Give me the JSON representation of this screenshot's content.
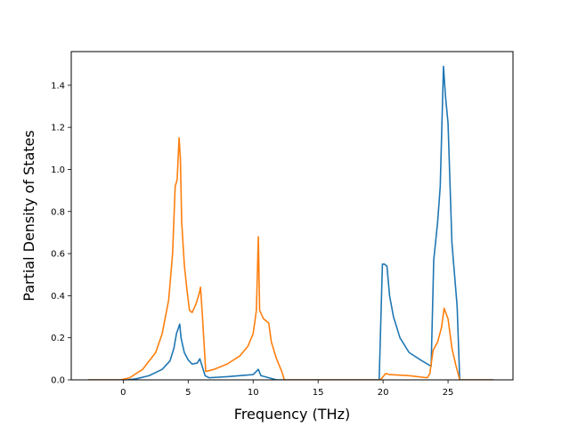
{
  "chart_data": {
    "type": "line",
    "title": "",
    "xlabel": "Frequency (THz)",
    "ylabel": "Partial Density of States",
    "xlim": [
      -4.0,
      30.0
    ],
    "ylim": [
      0.0,
      1.56
    ],
    "xticks": [
      0,
      5,
      10,
      15,
      20,
      25
    ],
    "xtick_labels": [
      "0",
      "5",
      "10",
      "15",
      "20",
      "25"
    ],
    "yticks": [
      0.0,
      0.2,
      0.4,
      0.6,
      0.8,
      1.0,
      1.2,
      1.4
    ],
    "ytick_labels": [
      "0.0",
      "0.2",
      "0.4",
      "0.6",
      "0.8",
      "1.0",
      "1.2",
      "1.4"
    ],
    "grid": false,
    "legend": null,
    "series": [
      {
        "color": "#1f77b4",
        "points": [
          [
            -2.7,
            0.0
          ],
          [
            0.3,
            0.0
          ],
          [
            1.0,
            0.005
          ],
          [
            2.0,
            0.02
          ],
          [
            3.0,
            0.05
          ],
          [
            3.6,
            0.09
          ],
          [
            3.9,
            0.15
          ],
          [
            4.1,
            0.22
          ],
          [
            4.35,
            0.265
          ],
          [
            4.45,
            0.2
          ],
          [
            4.7,
            0.13
          ],
          [
            5.0,
            0.095
          ],
          [
            5.3,
            0.075
          ],
          [
            5.7,
            0.08
          ],
          [
            5.9,
            0.1
          ],
          [
            6.1,
            0.06
          ],
          [
            6.3,
            0.02
          ],
          [
            6.6,
            0.01
          ],
          [
            8.0,
            0.015
          ],
          [
            10.0,
            0.025
          ],
          [
            10.4,
            0.05
          ],
          [
            10.6,
            0.02
          ],
          [
            11.2,
            0.01
          ],
          [
            11.8,
            0.0
          ],
          [
            19.7,
            0.0
          ],
          [
            19.95,
            0.55
          ],
          [
            20.1,
            0.55
          ],
          [
            20.3,
            0.54
          ],
          [
            20.5,
            0.4
          ],
          [
            20.8,
            0.3
          ],
          [
            21.3,
            0.2
          ],
          [
            22.0,
            0.13
          ],
          [
            23.0,
            0.09
          ],
          [
            23.7,
            0.065
          ],
          [
            23.9,
            0.57
          ],
          [
            24.2,
            0.75
          ],
          [
            24.4,
            0.92
          ],
          [
            24.65,
            1.49
          ],
          [
            24.8,
            1.35
          ],
          [
            25.0,
            1.22
          ],
          [
            25.3,
            0.65
          ],
          [
            25.7,
            0.35
          ],
          [
            25.9,
            0.0
          ],
          [
            28.5,
            0.0
          ]
        ]
      },
      {
        "color": "#ff7f0e",
        "points": [
          [
            -2.7,
            0.0
          ],
          [
            -0.2,
            0.0
          ],
          [
            0.5,
            0.01
          ],
          [
            1.5,
            0.05
          ],
          [
            2.5,
            0.13
          ],
          [
            3.0,
            0.22
          ],
          [
            3.5,
            0.38
          ],
          [
            3.8,
            0.6
          ],
          [
            4.0,
            0.92
          ],
          [
            4.15,
            0.95
          ],
          [
            4.3,
            1.15
          ],
          [
            4.4,
            1.05
          ],
          [
            4.5,
            0.75
          ],
          [
            4.7,
            0.55
          ],
          [
            4.9,
            0.43
          ],
          [
            5.1,
            0.33
          ],
          [
            5.3,
            0.32
          ],
          [
            5.6,
            0.36
          ],
          [
            5.85,
            0.41
          ],
          [
            5.95,
            0.44
          ],
          [
            6.1,
            0.3
          ],
          [
            6.35,
            0.04
          ],
          [
            7.0,
            0.05
          ],
          [
            8.0,
            0.075
          ],
          [
            9.0,
            0.115
          ],
          [
            9.6,
            0.16
          ],
          [
            10.0,
            0.22
          ],
          [
            10.25,
            0.33
          ],
          [
            10.4,
            0.68
          ],
          [
            10.5,
            0.33
          ],
          [
            10.8,
            0.29
          ],
          [
            11.2,
            0.27
          ],
          [
            11.4,
            0.18
          ],
          [
            11.8,
            0.1
          ],
          [
            12.2,
            0.04
          ],
          [
            12.4,
            0.0
          ],
          [
            19.8,
            0.0
          ],
          [
            20.2,
            0.03
          ],
          [
            20.5,
            0.025
          ],
          [
            22.0,
            0.02
          ],
          [
            23.4,
            0.01
          ],
          [
            23.6,
            0.03
          ],
          [
            23.85,
            0.14
          ],
          [
            24.2,
            0.18
          ],
          [
            24.5,
            0.25
          ],
          [
            24.7,
            0.34
          ],
          [
            25.0,
            0.29
          ],
          [
            25.3,
            0.15
          ],
          [
            25.6,
            0.07
          ],
          [
            25.9,
            0.0
          ],
          [
            28.5,
            0.0
          ]
        ]
      }
    ]
  }
}
